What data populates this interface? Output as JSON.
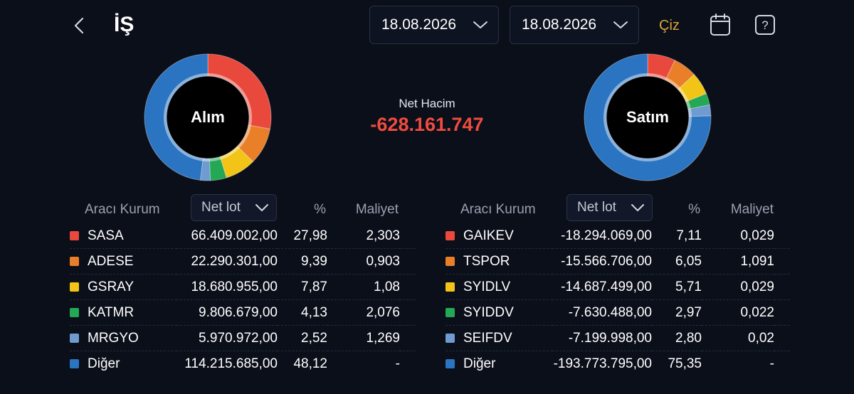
{
  "header": {
    "title": "İŞ",
    "start_date": "18.08.2026",
    "end_date": "18.08.2026",
    "draw_label": "Çiz"
  },
  "summary": {
    "net_volume_label": "Net Hacim",
    "net_volume_value": "-628.161.747"
  },
  "colors": {
    "red": "#e8493c",
    "orange": "#ea7f2a",
    "yellow": "#f2c418",
    "green": "#25a855",
    "lightblue": "#6f9bd1",
    "blue": "#2a74c2",
    "negative": "#ef4b3e",
    "accent": "#d9a43a"
  },
  "buy": {
    "chart_label": "Alım",
    "col_broker": "Aracı Kurum",
    "col_select": "Net lot",
    "col_pct": "%",
    "col_cost": "Maliyet",
    "rows": [
      {
        "name": "SASA",
        "lot": "66.409.002,00",
        "pct": "27,98",
        "cost": "2,303",
        "color": "#e8493c",
        "share": 27.98
      },
      {
        "name": "ADESE",
        "lot": "22.290.301,00",
        "pct": "9,39",
        "cost": "0,903",
        "color": "#ea7f2a",
        "share": 9.39
      },
      {
        "name": "GSRAY",
        "lot": "18.680.955,00",
        "pct": "7,87",
        "cost": "1,08",
        "color": "#f2c418",
        "share": 7.87
      },
      {
        "name": "KATMR",
        "lot": "9.806.679,00",
        "pct": "4,13",
        "cost": "2,076",
        "color": "#25a855",
        "share": 4.13
      },
      {
        "name": "MRGYO",
        "lot": "5.970.972,00",
        "pct": "2,52",
        "cost": "1,269",
        "color": "#6f9bd1",
        "share": 2.52
      },
      {
        "name": "Diğer",
        "lot": "114.215.685,00",
        "pct": "48,12",
        "cost": "-",
        "color": "#2a74c2",
        "share": 48.12
      }
    ]
  },
  "sell": {
    "chart_label": "Satım",
    "col_broker": "Aracı Kurum",
    "col_select": "Net lot",
    "col_pct": "%",
    "col_cost": "Maliyet",
    "rows": [
      {
        "name": "GAIKEV",
        "lot": "-18.294.069,00",
        "pct": "7,11",
        "cost": "0,029",
        "color": "#e8493c",
        "share": 7.11
      },
      {
        "name": "TSPOR",
        "lot": "-15.566.706,00",
        "pct": "6,05",
        "cost": "1,091",
        "color": "#ea7f2a",
        "share": 6.05
      },
      {
        "name": "SYIDLV",
        "lot": "-14.687.499,00",
        "pct": "5,71",
        "cost": "0,029",
        "color": "#f2c418",
        "share": 5.71
      },
      {
        "name": "SYIDDV",
        "lot": "-7.630.488,00",
        "pct": "2,97",
        "cost": "0,022",
        "color": "#25a855",
        "share": 2.97
      },
      {
        "name": "SEIFDV",
        "lot": "-7.199.998,00",
        "pct": "2,80",
        "cost": "0,02",
        "color": "#6f9bd1",
        "share": 2.8
      },
      {
        "name": "Diğer",
        "lot": "-193.773.795,00",
        "pct": "75,35",
        "cost": "-",
        "color": "#2a74c2",
        "share": 75.35
      }
    ]
  }
}
